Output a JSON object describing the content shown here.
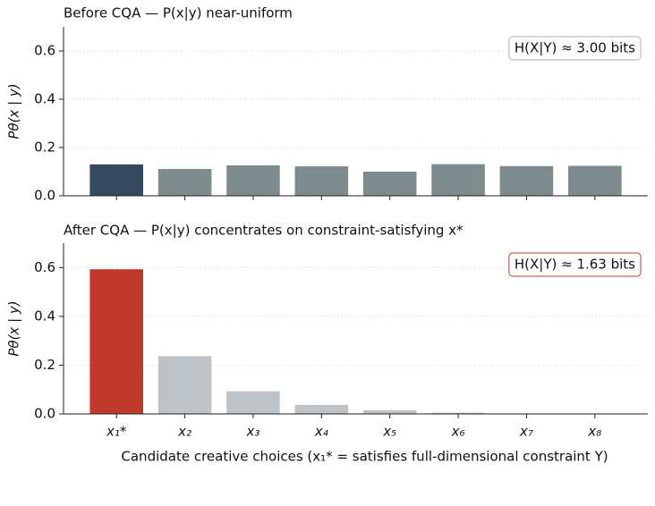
{
  "chart_data": [
    {
      "type": "bar",
      "title": "Before CQA — P(x|y) near-uniform",
      "ylabel": "Pθ(x | y)",
      "annotation": "H(X|Y) ≈ 3.00 bits",
      "values": [
        0.13,
        0.111,
        0.126,
        0.122,
        0.1,
        0.131,
        0.123,
        0.124
      ],
      "colors": [
        "#34495e",
        "#7f8c8d",
        "#7f8c8d",
        "#7f8c8d",
        "#7f8c8d",
        "#7f8c8d",
        "#7f8c8d",
        "#7f8c8d"
      ],
      "ylim": [
        0,
        0.7
      ],
      "yticks": [
        {
          "value": 0,
          "label": "0.0"
        },
        0.2,
        0.4,
        0.6
      ],
      "grid": true
    },
    {
      "type": "bar",
      "title": "After CQA — P(x|y) concentrates on constraint-satisfying x*",
      "ylabel": "Pθ(x | y)",
      "annotation": "H(X|Y) ≈ 1.63 bits",
      "xlabel": "Candidate creative choices (x₁* = satisfies full-dimensional constraint Y)",
      "categories": [
        "x₁*",
        "x₂",
        "x₃",
        "x₄",
        "x₅",
        "x₆",
        "x₇",
        "x₈"
      ],
      "values": [
        0.593,
        0.237,
        0.093,
        0.037,
        0.015,
        0.005,
        0.002,
        0.001
      ],
      "colors": [
        "#c0392b",
        "#bdc3c7",
        "#bdc3c7",
        "#bdc3c7",
        "#bdc3c7",
        "#bdc3c7",
        "#bdc3c7",
        "#bdc3c7"
      ],
      "ylim": [
        0,
        0.7
      ],
      "yticks": [
        {
          "value": 0,
          "label": "0.0"
        },
        0.2,
        0.4,
        0.6
      ],
      "grid": true
    }
  ]
}
